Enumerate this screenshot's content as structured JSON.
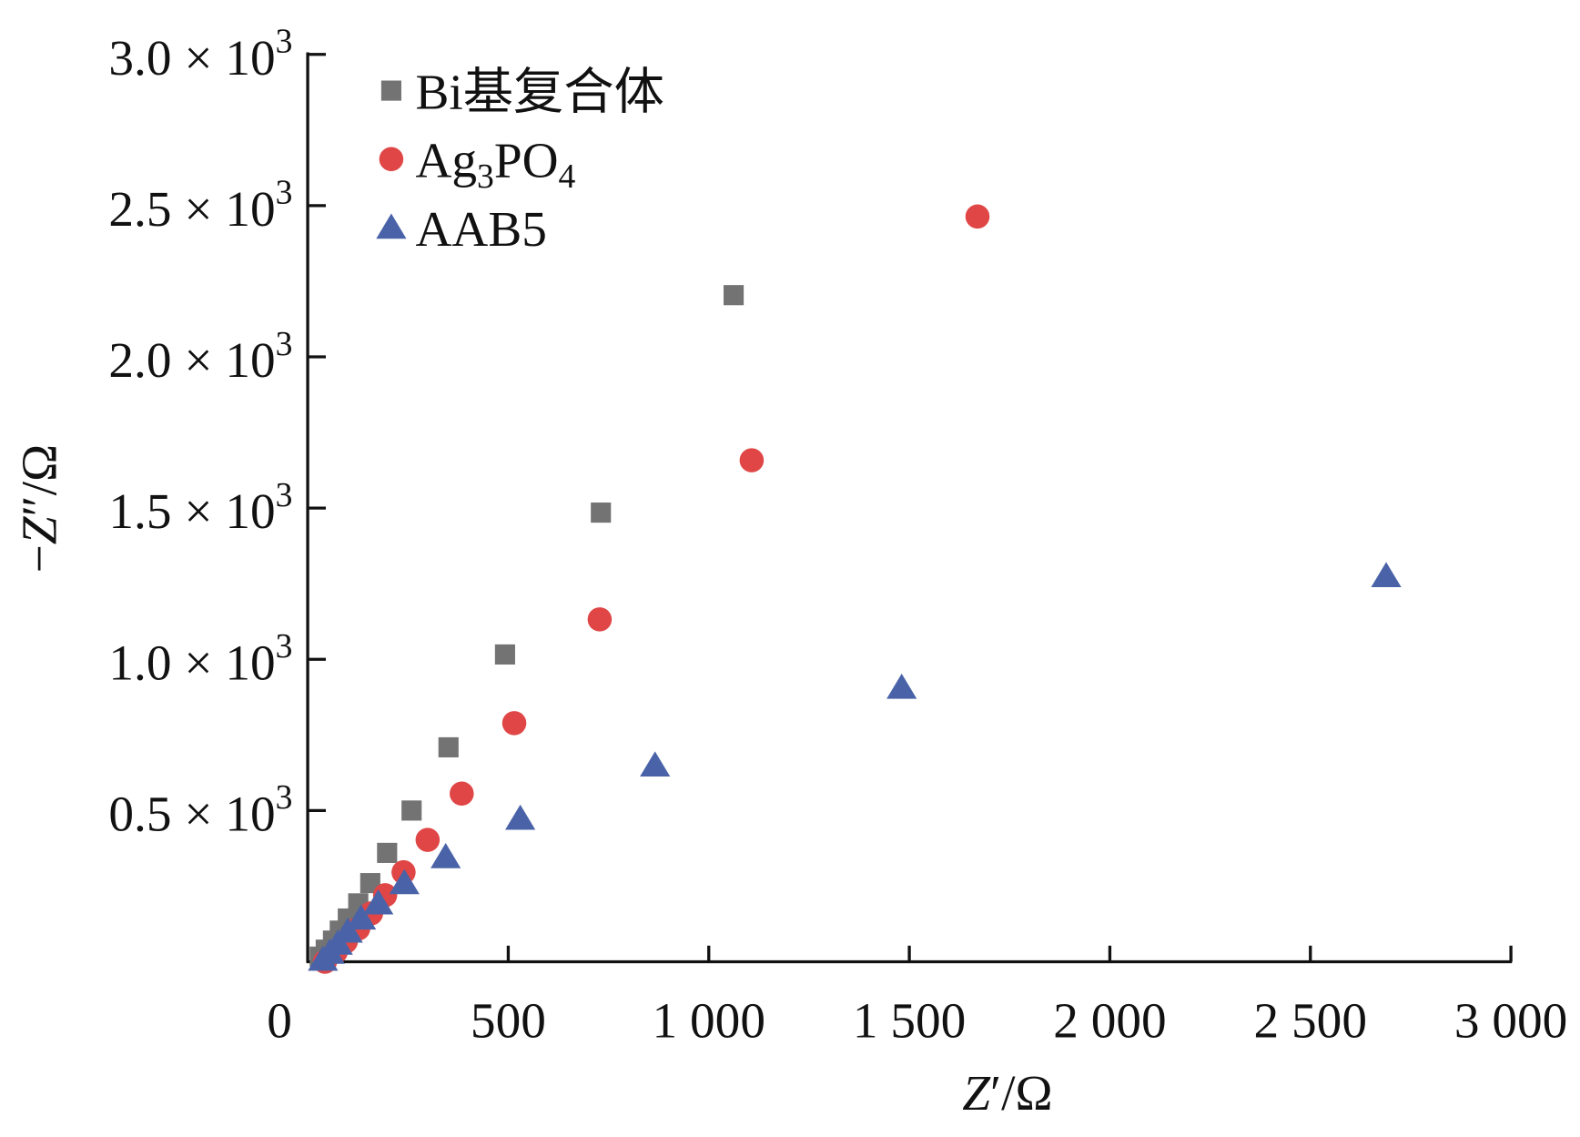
{
  "chart_data": {
    "type": "scatter",
    "title": "",
    "xlabel": "Z′/Ω",
    "ylabel": "−Z″/Ω",
    "xlim": [
      0,
      3000
    ],
    "ylim": [
      0,
      3000
    ],
    "grid": false,
    "legend_position": "top-left",
    "x_ticks": [
      0,
      500,
      1000,
      1500,
      2000,
      2500,
      3000
    ],
    "x_tick_labels": [
      "0",
      "500",
      "1 000",
      "1 500",
      "2 000",
      "2 500",
      "3 000"
    ],
    "y_ticks": [
      500,
      1000,
      1500,
      2000,
      2500,
      3000
    ],
    "y_tick_labels": [
      "0.5 × 10³",
      "1.0 × 10³",
      "1.5 × 10³",
      "2.0 × 10³",
      "2.5 × 10³",
      "3.0 × 10³"
    ],
    "series": [
      {
        "name": "Bi基复合体",
        "marker": "square",
        "color": "#737373",
        "x": [
          30,
          45,
          63,
          80,
          100,
          126,
          156,
          198,
          259,
          351,
          492,
          731,
          1062
        ],
        "y": [
          17,
          40,
          70,
          103,
          143,
          193,
          260,
          360,
          500,
          709,
          1016,
          1485,
          2204
        ]
      },
      {
        "name": "Ag3PO4",
        "name_html": [
          "Ag",
          "3",
          "PO",
          "4"
        ],
        "marker": "circle",
        "color": "#e04646",
        "x": [
          43,
          70,
          95,
          126,
          158,
          193,
          239,
          299,
          384,
          515,
          728,
          1107,
          1670
        ],
        "y": [
          0,
          33,
          67,
          110,
          160,
          220,
          296,
          403,
          556,
          789,
          1132,
          1658,
          2464
        ]
      },
      {
        "name": "AAB5",
        "marker": "triangle",
        "color": "#4a63a8",
        "x": [
          38,
          55,
          75,
          100,
          133,
          176,
          241,
          344,
          530,
          866,
          1481,
          2689
        ],
        "y": [
          7,
          30,
          60,
          100,
          143,
          193,
          260,
          346,
          473,
          649,
          906,
          1275
        ]
      }
    ]
  }
}
